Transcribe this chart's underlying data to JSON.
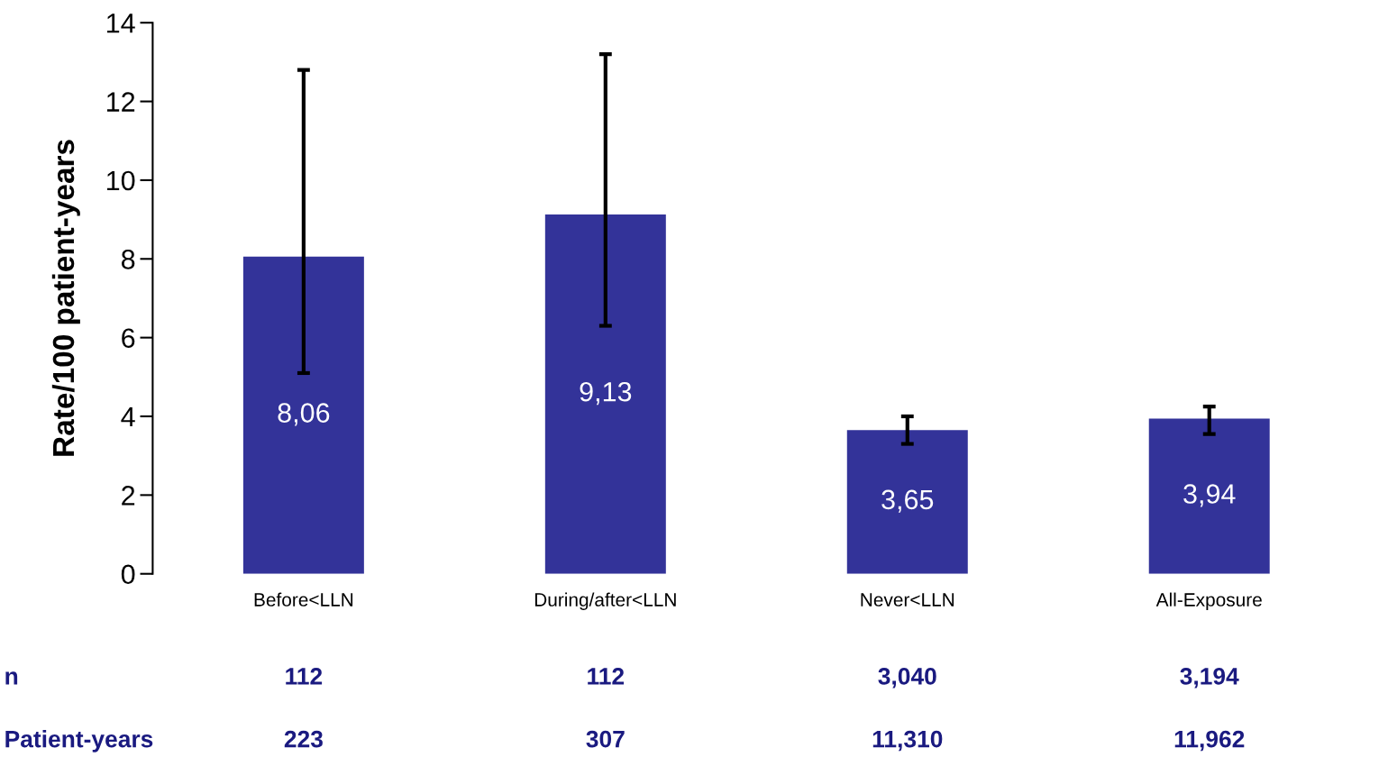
{
  "chart_data": {
    "type": "bar",
    "ylabel": "Rate/100 patient-years",
    "categories": [
      "Before<LLN",
      "During/after<LLN",
      "Never<LLN",
      "All-Exposure"
    ],
    "values": [
      8.06,
      9.13,
      3.65,
      3.94
    ],
    "value_labels": [
      "8,06",
      "9,13",
      "3,65",
      "3,94"
    ],
    "errors": [
      [
        5.1,
        12.8
      ],
      [
        6.3,
        13.2
      ],
      [
        3.3,
        4.0
      ],
      [
        3.55,
        4.25
      ]
    ],
    "color": "#333399",
    "ylim": [
      0,
      14
    ],
    "yticks": [
      0,
      2,
      4,
      6,
      8,
      10,
      12,
      14
    ],
    "grid": false,
    "legend": false,
    "annotations": [
      "n",
      "112",
      "112",
      "3,040",
      "3,194",
      "Patient-years",
      "223",
      "307",
      "11,310",
      "11,962"
    ]
  }
}
